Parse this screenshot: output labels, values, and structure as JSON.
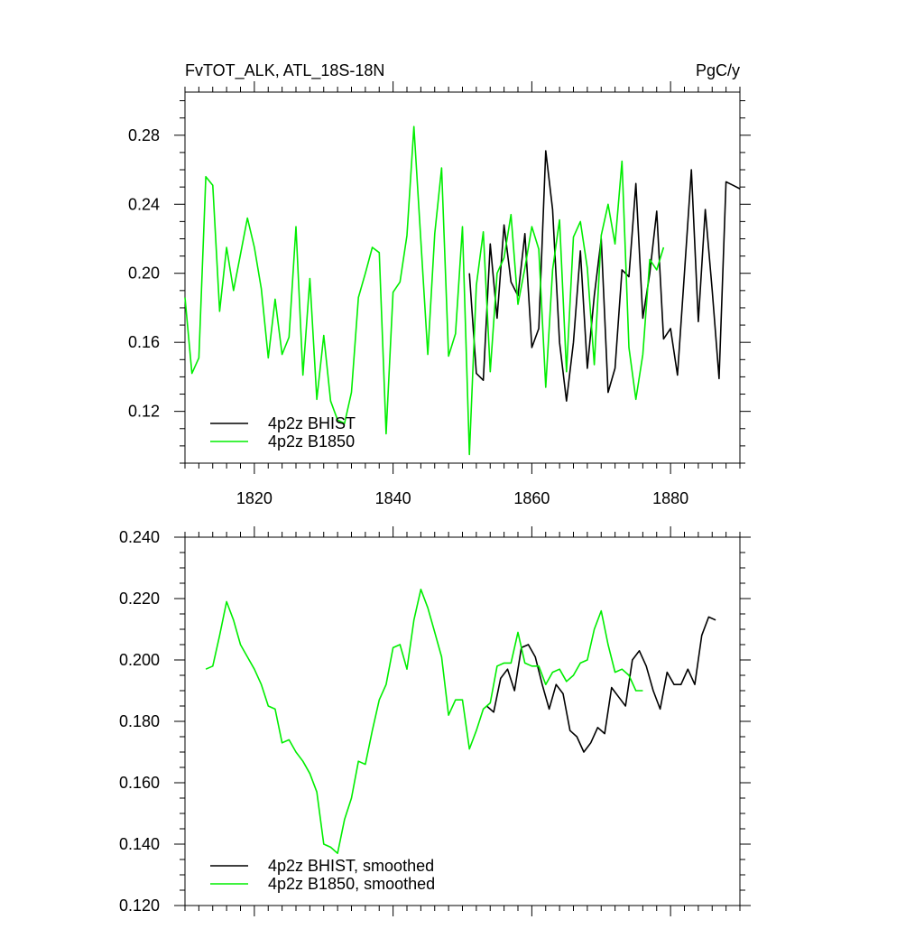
{
  "chart_data": [
    {
      "type": "line",
      "title_left": "FvTOT_ALK, ATL_18S-18N",
      "title_right": "PgC/y",
      "xlim": [
        1810,
        1890
      ],
      "ylim": [
        0.09,
        0.305
      ],
      "x_ticks": [
        1820,
        1840,
        1860,
        1880
      ],
      "y_ticks": [
        0.12,
        0.16,
        0.2,
        0.24,
        0.28
      ],
      "y_tick_labels": [
        "0.12",
        "0.16",
        "0.20",
        "0.24",
        "0.28"
      ],
      "legend_position": "bottom-left",
      "series": [
        {
          "name": "4p2z BHIST",
          "color": "#000000",
          "x_start": 1851,
          "values": [
            0.2,
            0.142,
            0.138,
            0.217,
            0.174,
            0.228,
            0.195,
            0.187,
            0.223,
            0.157,
            0.168,
            0.271,
            0.237,
            0.16,
            0.126,
            0.16,
            0.213,
            0.145,
            0.187,
            0.22,
            0.131,
            0.145,
            0.202,
            0.198,
            0.252,
            0.174,
            0.2,
            0.236,
            0.162,
            0.168,
            0.141,
            0.2,
            0.26,
            0.172,
            0.237,
            0.19,
            0.139,
            0.253,
            0.251,
            0.249
          ]
        },
        {
          "name": "4p2z B1850",
          "color": "#00ee00",
          "x_start": 1810,
          "values": [
            0.186,
            0.142,
            0.151,
            0.256,
            0.251,
            0.178,
            0.215,
            0.19,
            0.211,
            0.232,
            0.215,
            0.191,
            0.151,
            0.185,
            0.153,
            0.163,
            0.227,
            0.141,
            0.197,
            0.127,
            0.164,
            0.126,
            0.115,
            0.113,
            0.131,
            0.186,
            0.2,
            0.215,
            0.212,
            0.107,
            0.189,
            0.195,
            0.222,
            0.285,
            0.219,
            0.153,
            0.223,
            0.261,
            0.152,
            0.165,
            0.227,
            0.095,
            0.193,
            0.224,
            0.143,
            0.2,
            0.209,
            0.234,
            0.182,
            0.203,
            0.227,
            0.214,
            0.134,
            0.202,
            0.231,
            0.143,
            0.221,
            0.23,
            0.203,
            0.147,
            0.222,
            0.24,
            0.217,
            0.265,
            0.157,
            0.127,
            0.153,
            0.208,
            0.202,
            0.215
          ]
        }
      ]
    },
    {
      "type": "line",
      "xlim": [
        1810,
        1890
      ],
      "ylim": [
        0.12,
        0.24
      ],
      "x_ticks": [
        1820,
        1840,
        1860,
        1880
      ],
      "y_ticks": [
        0.12,
        0.14,
        0.16,
        0.18,
        0.2,
        0.22,
        0.24
      ],
      "y_tick_labels": [
        "0.120",
        "0.140",
        "0.160",
        "0.180",
        "0.200",
        "0.220",
        "0.240"
      ],
      "legend_position": "bottom-left",
      "series": [
        {
          "name": "4p2z BHIST, smoothed",
          "color": "#000000",
          "x_start": 1853.5,
          "values": [
            0.185,
            0.183,
            0.194,
            0.197,
            0.19,
            0.204,
            0.205,
            0.201,
            0.192,
            0.184,
            0.192,
            0.189,
            0.177,
            0.175,
            0.17,
            0.173,
            0.178,
            0.176,
            0.191,
            0.188,
            0.185,
            0.2,
            0.203,
            0.198,
            0.19,
            0.184,
            0.196,
            0.192,
            0.192,
            0.197,
            0.192,
            0.208,
            0.214,
            0.213
          ]
        },
        {
          "name": "4p2z B1850, smoothed",
          "color": "#00ee00",
          "x_start": 1813,
          "values": [
            0.197,
            0.198,
            0.208,
            0.219,
            0.213,
            0.205,
            0.201,
            0.197,
            0.192,
            0.185,
            0.184,
            0.173,
            0.174,
            0.17,
            0.167,
            0.163,
            0.157,
            0.14,
            0.139,
            0.137,
            0.148,
            0.155,
            0.167,
            0.166,
            0.177,
            0.187,
            0.192,
            0.204,
            0.205,
            0.197,
            0.213,
            0.223,
            0.217,
            0.209,
            0.201,
            0.182,
            0.187,
            0.187,
            0.171,
            0.177,
            0.184,
            0.186,
            0.198,
            0.199,
            0.199,
            0.209,
            0.199,
            0.198,
            0.198,
            0.192,
            0.196,
            0.197,
            0.193,
            0.195,
            0.199,
            0.2,
            0.21,
            0.216,
            0.205,
            0.196,
            0.197,
            0.195,
            0.19,
            0.19
          ]
        }
      ]
    }
  ]
}
